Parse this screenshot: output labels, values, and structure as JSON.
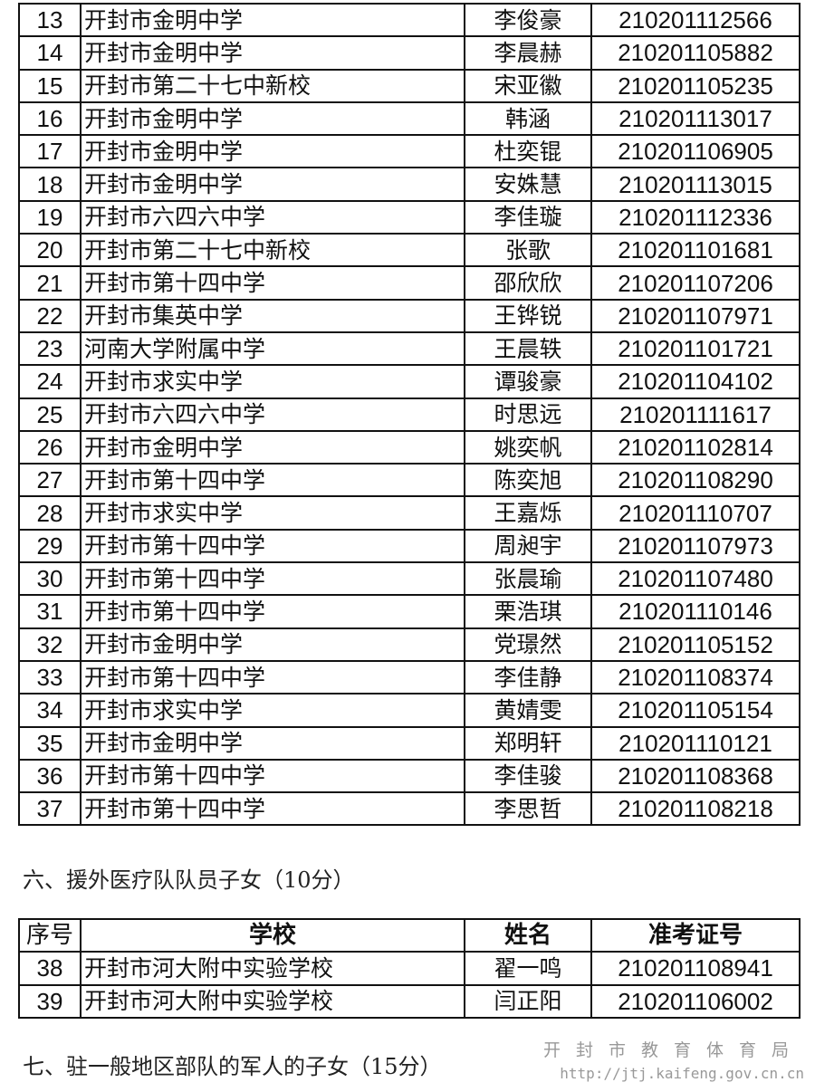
{
  "table1": {
    "rows": [
      [
        "13",
        "开封市金明中学",
        "李俊豪",
        "210201112566"
      ],
      [
        "14",
        "开封市金明中学",
        "李晨赫",
        "210201105882"
      ],
      [
        "15",
        "开封市第二十七中新校",
        "宋亚徽",
        "210201105235"
      ],
      [
        "16",
        "开封市金明中学",
        "韩涵",
        "210201113017"
      ],
      [
        "17",
        "开封市金明中学",
        "杜奕锟",
        "210201106905"
      ],
      [
        "18",
        "开封市金明中学",
        "安姝慧",
        "210201113015"
      ],
      [
        "19",
        "开封市六四六中学",
        "李佳璇",
        "210201112336"
      ],
      [
        "20",
        "开封市第二十七中新校",
        "张歌",
        "210201101681"
      ],
      [
        "21",
        "开封市第十四中学",
        "邵欣欣",
        "210201107206"
      ],
      [
        "22",
        "开封市集英中学",
        "王铧锐",
        "210201107971"
      ],
      [
        "23",
        "河南大学附属中学",
        "王晨轶",
        "210201101721"
      ],
      [
        "24",
        "开封市求实中学",
        "谭骏豪",
        "210201104102"
      ],
      [
        "25",
        "开封市六四六中学",
        "时思远",
        "210201111617"
      ],
      [
        "26",
        "开封市金明中学",
        "姚奕帆",
        "210201102814"
      ],
      [
        "27",
        "开封市第十四中学",
        "陈奕旭",
        "210201108290"
      ],
      [
        "28",
        "开封市求实中学",
        "王嘉烁",
        "210201110707"
      ],
      [
        "29",
        "开封市第十四中学",
        "周昶宇",
        "210201107973"
      ],
      [
        "30",
        "开封市第十四中学",
        "张晨瑜",
        "210201107480"
      ],
      [
        "31",
        "开封市第十四中学",
        "栗浩琪",
        "210201110146"
      ],
      [
        "32",
        "开封市金明中学",
        "党璟然",
        "210201105152"
      ],
      [
        "33",
        "开封市第十四中学",
        "李佳静",
        "210201108374"
      ],
      [
        "34",
        "开封市求实中学",
        "黄婧雯",
        "210201105154"
      ],
      [
        "35",
        "开封市金明中学",
        "郑明轩",
        "210201110121"
      ],
      [
        "36",
        "开封市第十四中学",
        "李佳骏",
        "210201108368"
      ],
      [
        "37",
        "开封市第十四中学",
        "李思哲",
        "210201108218"
      ]
    ]
  },
  "section6": {
    "heading": "六、援外医疗队队员子女（10分）",
    "headers": [
      "序号",
      "学校",
      "姓名",
      "准考证号"
    ],
    "rows": [
      [
        "38",
        "开封市河大附中实验学校",
        "翟一鸣",
        "210201108941"
      ],
      [
        "39",
        "开封市河大附中实验学校",
        "闫正阳",
        "210201106002"
      ]
    ]
  },
  "section7": {
    "heading": "七、驻一般地区部队的军人的子女（15分）"
  },
  "watermark": {
    "org": "开封市教育体育局",
    "url": "http://jtj.kaifeng.gov.cn.cn"
  }
}
